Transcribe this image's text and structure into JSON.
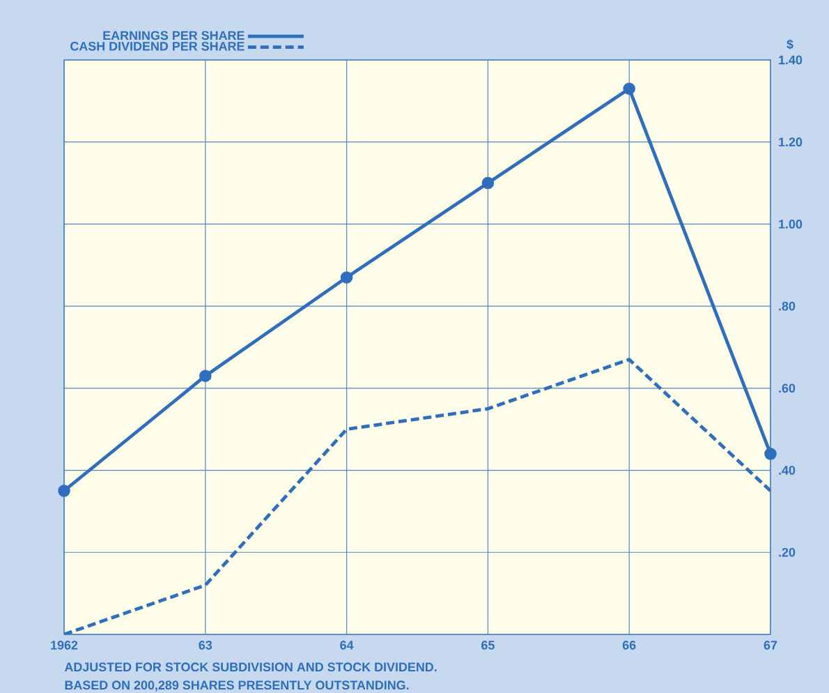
{
  "chart_data": {
    "type": "line",
    "ylabel": "$",
    "x": [
      1962,
      1963,
      1964,
      1965,
      1966,
      1967
    ],
    "series": [
      {
        "name": "EARNINGS PER SHARE",
        "color": "#2f6dbd",
        "values": [
          0.35,
          0.63,
          0.87,
          1.1,
          1.33,
          0.44
        ],
        "marker": "circle",
        "line_style": "solid"
      },
      {
        "name": "CASH DIVIDEND PER SHARE",
        "color": "#2f6dbd",
        "values": [
          0.0,
          0.12,
          0.5,
          0.55,
          0.67,
          0.35
        ],
        "marker": "none",
        "line_style": "dashed"
      }
    ],
    "xlim": [
      1962,
      1967
    ],
    "xticks": [
      {
        "value": 1962,
        "label": "1962"
      },
      {
        "value": 1963,
        "label": "63"
      },
      {
        "value": 1964,
        "label": "64"
      },
      {
        "value": 1965,
        "label": "65"
      },
      {
        "value": 1966,
        "label": "66"
      },
      {
        "value": 1967,
        "label": "67"
      }
    ],
    "ylim": [
      0,
      1.4
    ],
    "yticks": [
      {
        "value": 0,
        "label": null
      },
      {
        "value": 0.2,
        "label": ".20"
      },
      {
        "value": 0.4,
        "label": ".40"
      },
      {
        "value": 0.6,
        "label": ".60"
      },
      {
        "value": 0.8,
        "label": ".80"
      },
      {
        "value": 1.0,
        "label": "1.00"
      },
      {
        "value": 1.2,
        "label": "1.20"
      },
      {
        "value": 1.4,
        "label": "1.40"
      }
    ],
    "grid": true,
    "legend": "top left",
    "annotations": [
      "ADJUSTED FOR STOCK SUBDIVISION AND STOCK DIVIDEND.",
      "BASED ON 200,289 SHARES PRESENTLY OUTSTANDING."
    ]
  }
}
